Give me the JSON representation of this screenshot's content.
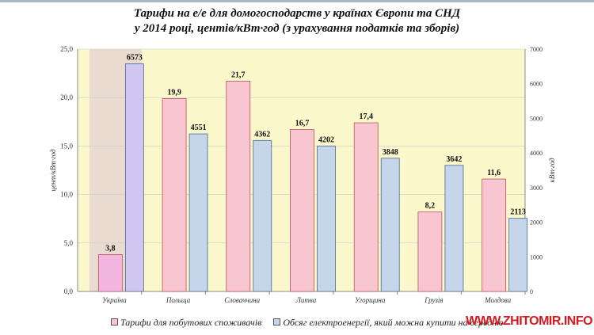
{
  "chart_data": {
    "type": "bar",
    "title": [
      "Тарифи на е/е для домогосподарств у країнах Європи та СНД",
      "у 2014 році, центів/кВт·год (з урахування податків та зборів)"
    ],
    "categories": [
      "Україна",
      "Польща",
      "Словаччина",
      "Литва",
      "Угорщина",
      "Грузія",
      "Молдова"
    ],
    "highlight_category": "Україна",
    "ylabel": "цент/кВт·год",
    "y2label": "кВт·год",
    "ylim": [
      0,
      25
    ],
    "y2lim": [
      0,
      7000
    ],
    "yticks": [
      "0,0",
      "5,0",
      "10,0",
      "15,0",
      "20,0",
      "25,0"
    ],
    "y2ticks": [
      "0",
      "1000",
      "2000",
      "3000",
      "4000",
      "5000",
      "6000",
      "7000"
    ],
    "series": [
      {
        "name": "Тарифи для побутових споживачів",
        "axis": "left",
        "color": "#f7c6d0",
        "highlight_color": "#f2b6e0",
        "values": [
          3.8,
          19.9,
          21.7,
          16.7,
          17.4,
          8.2,
          11.6
        ],
        "labels": [
          "3,8",
          "19,9",
          "21,7",
          "16,7",
          "17,4",
          "8,2",
          "11,6"
        ]
      },
      {
        "name": "Обсяг електроенергії, який можна купити на середню",
        "axis": "right",
        "color": "#c5d6ea",
        "highlight_color": "#cfc6f2",
        "values": [
          6573,
          4551,
          4362,
          4202,
          3848,
          3642,
          2113
        ],
        "labels": [
          "6573",
          "4551",
          "4362",
          "4202",
          "3848",
          "3642",
          "2113"
        ]
      }
    ],
    "colors": {
      "plot_bg": "#fbf8cc",
      "highlight_bg": "#eadbd0"
    }
  },
  "watermark": "WWW.ZHITOMIR.INFO"
}
